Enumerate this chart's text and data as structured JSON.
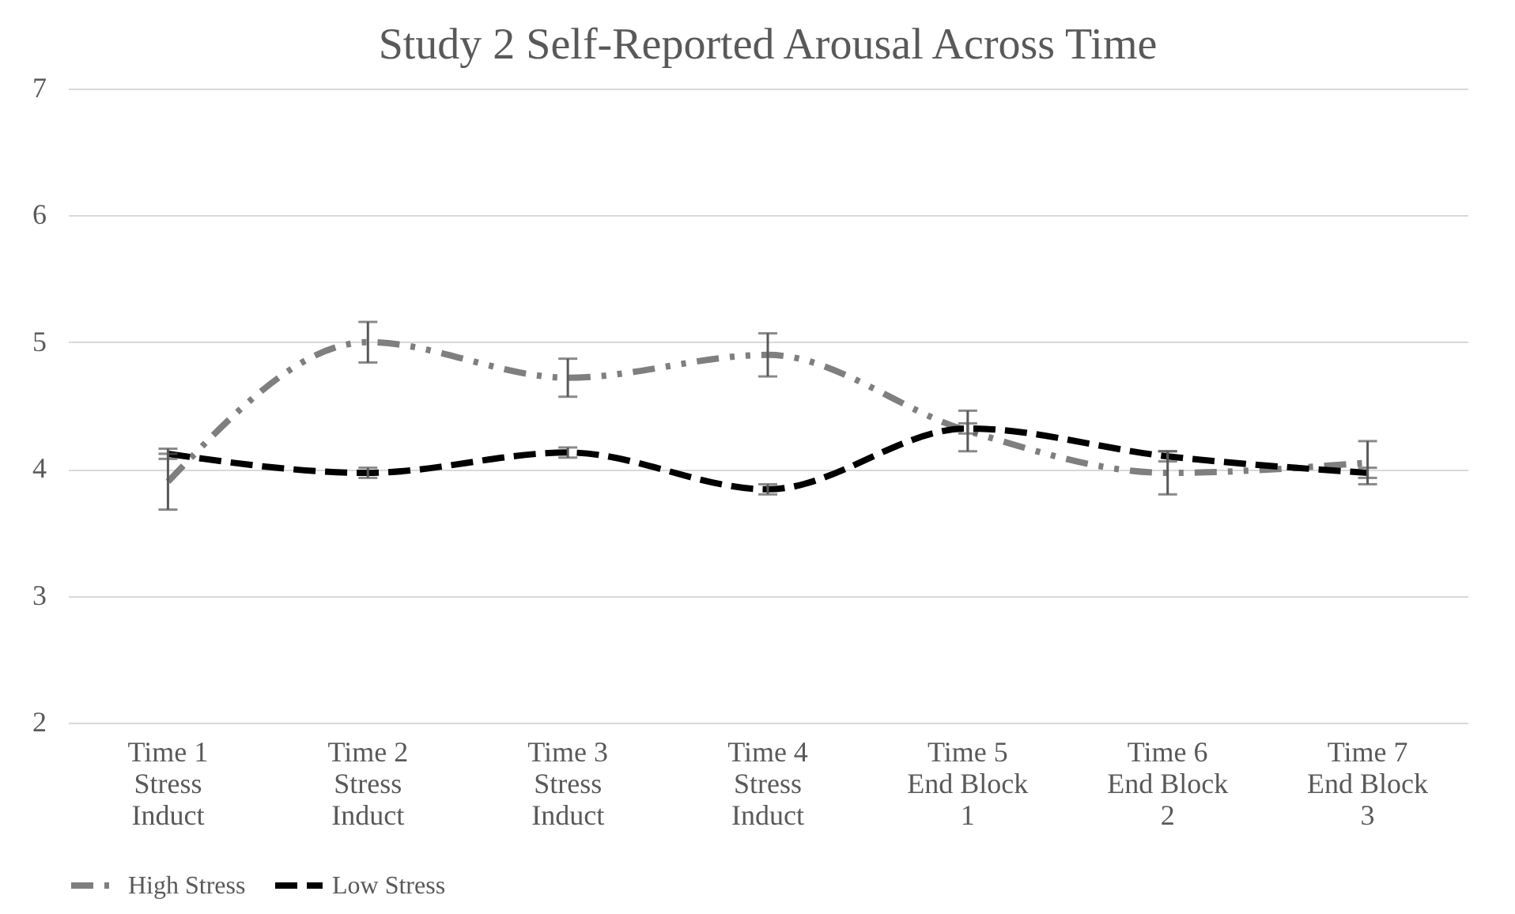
{
  "chart_data": {
    "type": "line",
    "title": "Study 2 Self-Reported Arousal Across Time",
    "categories": [
      "Time 1\nStress\nInduct",
      "Time 2\nStress\nInduct",
      "Time 3\nStress\nInduct",
      "Time 4\nStress\nInduct",
      "Time 5\nEnd Block\n1",
      "Time 6\nEnd Block\n2",
      "Time 7\nEnd Block\n3"
    ],
    "series": [
      {
        "name": "High Stress",
        "color": "#7f7f7f",
        "line_style": "dashed",
        "values": [
          3.9,
          5.0,
          4.72,
          4.9,
          4.3,
          3.97,
          4.05
        ],
        "errors": [
          0.22,
          0.16,
          0.15,
          0.17,
          0.16,
          0.17,
          0.17
        ]
      },
      {
        "name": "Low Stress",
        "color": "#000000",
        "line_style": "dashed",
        "values": [
          4.12,
          3.97,
          4.13,
          3.84,
          4.32,
          4.1,
          3.97
        ],
        "errors": [
          0.04,
          0.04,
          0.04,
          0.04,
          0.04,
          0.04,
          0.04
        ]
      }
    ],
    "ylim": [
      2,
      7
    ],
    "yticks": [
      2,
      3,
      4,
      5,
      6,
      7
    ],
    "grid": "y",
    "legend": "bottom",
    "marker": "none"
  }
}
